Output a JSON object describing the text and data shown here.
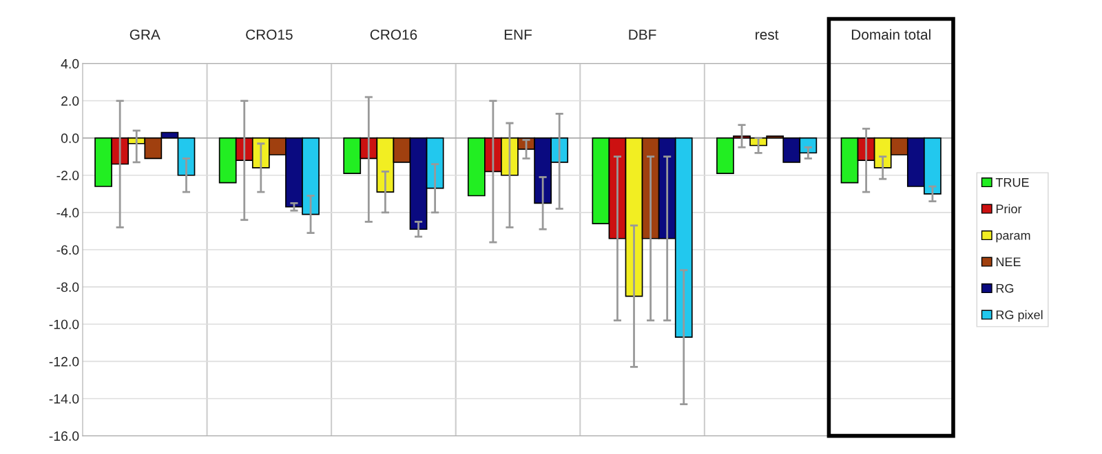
{
  "chart_data": {
    "type": "bar",
    "categories": [
      "GRA",
      "CRO15",
      "CRO16",
      "ENF",
      "DBF",
      "rest",
      "Domain total"
    ],
    "series": [
      {
        "name": "TRUE",
        "color": "#22ee22",
        "values": [
          -2.6,
          -2.4,
          -1.9,
          -3.1,
          -4.6,
          -1.9,
          -2.4
        ]
      },
      {
        "name": "Prior",
        "color": "#cc1111",
        "values": [
          -1.4,
          -1.2,
          -1.1,
          -1.8,
          -5.4,
          0.1,
          -1.2
        ],
        "errors": [
          [
            -4.8,
            2.0
          ],
          [
            -4.4,
            2.0
          ],
          [
            -4.5,
            2.2
          ],
          [
            -5.6,
            2.0
          ],
          [
            -9.8,
            -1.0
          ],
          [
            -0.5,
            0.7
          ],
          [
            -2.9,
            0.5
          ]
        ]
      },
      {
        "name": "param",
        "color": "#f2ee22",
        "values": [
          -0.3,
          -1.6,
          -2.9,
          -2.0,
          -8.5,
          -0.4,
          -1.6
        ],
        "errors": [
          [
            -1.3,
            0.4
          ],
          [
            -2.9,
            -0.3
          ],
          [
            -4.0,
            -1.8
          ],
          [
            -4.8,
            0.8
          ],
          [
            -12.3,
            -4.7
          ],
          [
            -0.8,
            0.0
          ],
          [
            -2.2,
            -1.0
          ]
        ]
      },
      {
        "name": "NEE",
        "color": "#a0400f",
        "values": [
          -1.1,
          -0.9,
          -1.3,
          -0.6,
          -5.4,
          0.1,
          -0.9
        ],
        "errors": [
          null,
          null,
          null,
          [
            -1.1,
            -0.1
          ],
          [
            -9.8,
            -1.0
          ],
          null,
          null
        ]
      },
      {
        "name": "RG",
        "color": "#0a0a80",
        "values": [
          0.3,
          -3.7,
          -4.9,
          -3.5,
          -5.4,
          -1.3,
          -2.6
        ],
        "errors": [
          null,
          [
            -3.9,
            -3.5
          ],
          [
            -5.3,
            -4.5
          ],
          [
            -4.9,
            -2.1
          ],
          [
            -9.8,
            -1.0
          ],
          null,
          null
        ]
      },
      {
        "name": "RG pixel",
        "color": "#22c8ee",
        "values": [
          -2.0,
          -4.1,
          -2.7,
          -1.3,
          -10.7,
          -0.8,
          -3.0
        ],
        "errors": [
          [
            -2.9,
            -1.1
          ],
          [
            -5.1,
            -3.1
          ],
          [
            -4.0,
            -1.4
          ],
          [
            -3.8,
            1.3
          ],
          [
            -14.3,
            -7.1
          ],
          [
            -1.1,
            -0.5
          ],
          [
            -3.4,
            -2.6
          ]
        ]
      }
    ],
    "ylim": [
      -16,
      4
    ],
    "yticks": [
      {
        "value": 4,
        "label": "4.0"
      },
      {
        "value": 2,
        "label": "2.0"
      },
      {
        "value": 0,
        "label": "0.0"
      },
      {
        "value": -2,
        "label": "-2.0"
      },
      {
        "value": -4,
        "label": "-4.0"
      },
      {
        "value": -6,
        "label": "-6.0"
      },
      {
        "value": -8,
        "label": "-8.0"
      },
      {
        "value": -10,
        "label": "-10.0"
      },
      {
        "value": -12,
        "label": "-12.0"
      },
      {
        "value": -14,
        "label": "-14.0"
      },
      {
        "value": -16,
        "label": "-16.0"
      }
    ],
    "grid": true,
    "legend": "right"
  }
}
